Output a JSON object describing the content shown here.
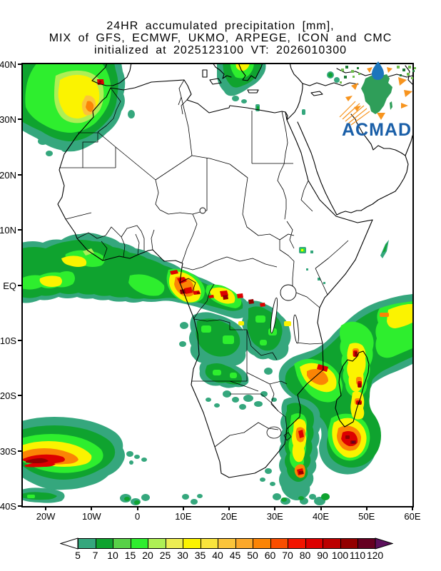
{
  "title": {
    "line1": "24HR accumulated precipitation [mm],",
    "line2": "MIX of GFS, ECMWF, UKMO, ARPEGE, ICON and CMC",
    "line3": "initialized at 2025123100 VT: 2026010300"
  },
  "map": {
    "y_axis_labels": [
      "40N",
      "30N",
      "20N",
      "10N",
      "EQ",
      "10S",
      "20S",
      "30S",
      "40S"
    ],
    "x_axis_labels": [
      "20W",
      "10W",
      "0",
      "10E",
      "20E",
      "30E",
      "40E",
      "50E",
      "60E"
    ]
  },
  "logo": {
    "text": "ACMAD",
    "text_color": "#1A5FA8",
    "africa_color": "#2F9E59",
    "drop_color": "#1C75BC",
    "accent_color": "#F7941E"
  },
  "colorbar": {
    "tick_labels": [
      "5",
      "7",
      "10",
      "15",
      "20",
      "25",
      "30",
      "35",
      "40",
      "45",
      "50",
      "60",
      "70",
      "80",
      "90",
      "100",
      "110",
      "120"
    ],
    "cell_colors": [
      "#35A77D",
      "#0FA32F",
      "#58D148",
      "#2EEE2E",
      "#AEEF55",
      "#EDED52",
      "#FBF300",
      "#F9E43C",
      "#FBC43A",
      "#FCA82A",
      "#FB8405",
      "#F94E00",
      "#F21500",
      "#DD0000",
      "#BC0000",
      "#930000",
      "#650021"
    ],
    "under_color": "#FFFFFF",
    "over_color": "#5C105C"
  }
}
